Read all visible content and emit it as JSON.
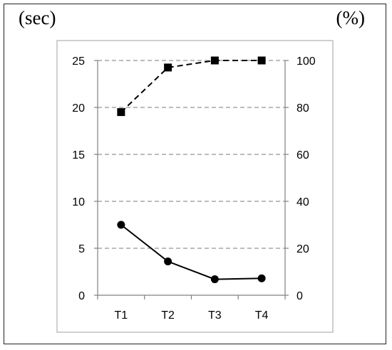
{
  "units": {
    "left": "(sec)",
    "right": "(%)"
  },
  "chart_data": {
    "type": "line",
    "categories": [
      "T1",
      "T2",
      "T3",
      "T4"
    ],
    "y_left": {
      "min": 0,
      "max": 25,
      "ticks": [
        "0",
        "5",
        "10",
        "15",
        "20",
        "25"
      ],
      "unit": "(sec)"
    },
    "y_right": {
      "min": 0,
      "max": 100,
      "ticks": [
        "0",
        "20",
        "40",
        "60",
        "80",
        "100"
      ],
      "unit": "(%)"
    },
    "series": [
      {
        "axis": "right",
        "marker": "square",
        "line_style": "dashed",
        "color": "#000000",
        "values": [
          78,
          97,
          100,
          100
        ]
      },
      {
        "axis": "left",
        "marker": "circle",
        "line_style": "solid",
        "color": "#000000",
        "values": [
          7.5,
          3.6,
          1.7,
          1.8
        ]
      }
    ],
    "grid": {
      "horizontal": true,
      "style": "dashed",
      "color": "#a6a6a6"
    },
    "legend": "none",
    "title": ""
  }
}
